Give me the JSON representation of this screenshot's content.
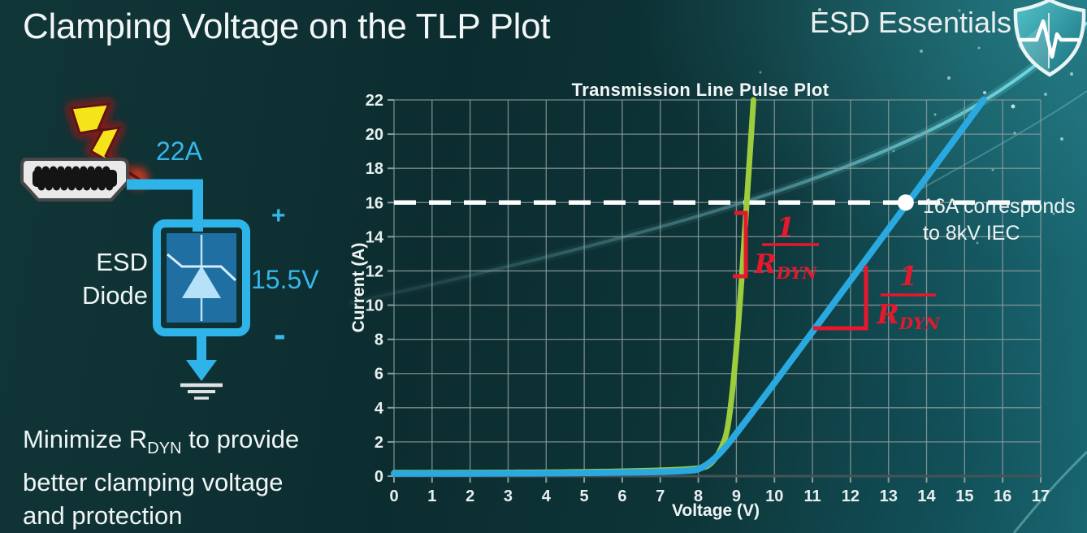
{
  "slide": {
    "title": "Clamping Voltage on the TLP Plot",
    "brand": "ESD Essentials"
  },
  "diagram": {
    "surge_current": "22A",
    "device_line1": "ESD",
    "device_line2": "Diode",
    "plus": "+",
    "clamp_voltage": "15.5V",
    "minus": "-"
  },
  "note": {
    "line1_pre": "Minimize R",
    "line1_sub": "DYN",
    "line1_post": " to provide",
    "line2": "better clamping voltage",
    "line3": "and protection"
  },
  "chart_data": {
    "type": "line",
    "title": "Transmission Line Pulse Plot",
    "xlabel": "Voltage (V)",
    "ylabel": "Current (A)",
    "xlim": [
      0,
      17
    ],
    "ylim": [
      0,
      22
    ],
    "x_ticks": [
      0,
      1,
      2,
      3,
      4,
      5,
      6,
      7,
      8,
      9,
      10,
      11,
      12,
      13,
      14,
      15,
      16,
      17
    ],
    "y_ticks": [
      0,
      2,
      4,
      6,
      8,
      10,
      12,
      14,
      16,
      18,
      20,
      22
    ],
    "grid": true,
    "legend": false,
    "series": [
      {
        "name": "green-low-rdyn",
        "color": "#9dcd3c",
        "width": 7,
        "points": [
          [
            0,
            0.2
          ],
          [
            7.9,
            0.2
          ],
          [
            8.5,
            0.9
          ],
          [
            8.9,
            3.5
          ],
          [
            9.45,
            22
          ]
        ]
      },
      {
        "name": "blue-high-rdyn",
        "color": "#2aa9e0",
        "width": 8,
        "points": [
          [
            0,
            0.15
          ],
          [
            7.6,
            0.15
          ],
          [
            8.3,
            0.6
          ],
          [
            9.2,
            3
          ],
          [
            15.5,
            22
          ]
        ]
      }
    ],
    "reference_line": {
      "y": 16,
      "style": "dashed",
      "color": "#ffffff"
    },
    "marker": {
      "x": 13.45,
      "y": 16,
      "label_line1": "16A corresponds",
      "label_line2": "to 8kV IEC"
    },
    "annotations": [
      {
        "numerator": "1",
        "denominator": "R",
        "denominator_sub": "DYN",
        "color": "#e6182b"
      },
      {
        "numerator": "1",
        "denominator": "R",
        "denominator_sub": "DYN",
        "color": "#e6182b"
      }
    ]
  }
}
